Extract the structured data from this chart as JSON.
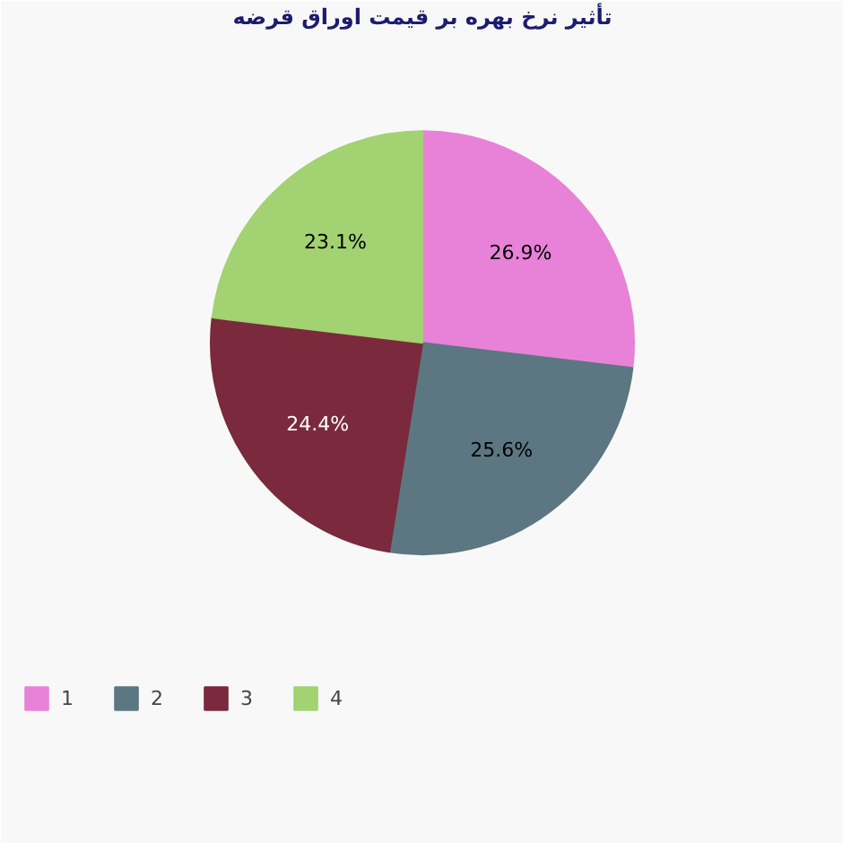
{
  "chart_data": {
    "type": "pie",
    "title": "تأثیر نرخ بهره بر قیمت اوراق قرضه",
    "categories": [
      "1",
      "2",
      "3",
      "4"
    ],
    "values": [
      26.9,
      25.6,
      24.4,
      23.1
    ],
    "value_labels": [
      "26.9%",
      "25.6%",
      "24.4%",
      "23.1%"
    ],
    "colors": [
      "#e882d8",
      "#5c7782",
      "#7a2a3c",
      "#a2d272"
    ],
    "legend": "bottom left"
  }
}
